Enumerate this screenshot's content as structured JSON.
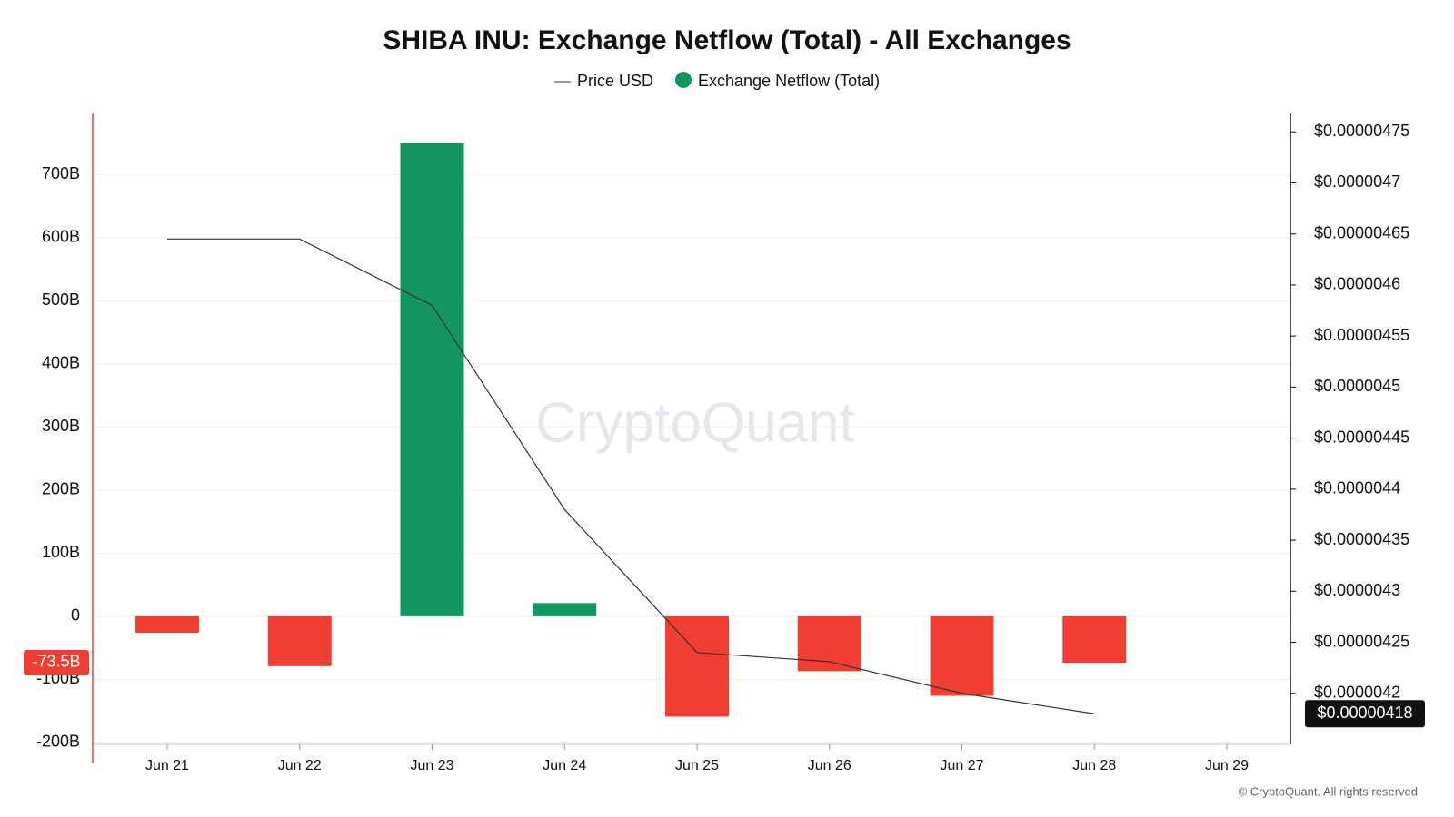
{
  "chart_data": {
    "type": "bar",
    "title": "SHIBA INU: Exchange Netflow (Total) - All Exchanges",
    "watermark": "CryptoQuant",
    "source": "© CryptoQuant. All rights reserved",
    "categories": [
      "Jun 21",
      "Jun 22",
      "Jun 23",
      "Jun 24",
      "Jun 25",
      "Jun 26",
      "Jun 27",
      "Jun 28",
      "Jun 29"
    ],
    "series": [
      {
        "name": "Price USD",
        "type": "line",
        "axis": "y2",
        "color": "#333333",
        "values": [
          4.645e-06,
          4.645e-06,
          4.58e-06,
          4.38e-06,
          4.24e-06,
          4.231e-06,
          4.2e-06,
          4.18e-06,
          null
        ],
        "value_labels": [
          null,
          null,
          null,
          null,
          null,
          null,
          null,
          "$0.00000418",
          null
        ]
      },
      {
        "name": "Exchange Netflow (Total)",
        "type": "bar",
        "color": "#14965f",
        "negative_color": "#f23d32",
        "values": [
          -26,
          -79,
          750,
          21,
          -159,
          -87,
          -126,
          -73.5,
          null
        ],
        "value_labels": [
          null,
          null,
          null,
          null,
          null,
          null,
          null,
          "-73.5B",
          null
        ]
      }
    ],
    "ylim": [
      -203,
      797
    ],
    "yticks": [
      {
        "value": -200,
        "label": "-200B"
      },
      {
        "value": -100,
        "label": "-100B"
      },
      0,
      {
        "value": 100,
        "label": "100B"
      },
      {
        "value": 200,
        "label": "200B"
      },
      {
        "value": 300,
        "label": "300B"
      },
      {
        "value": 400,
        "label": "400B"
      },
      {
        "value": 500,
        "label": "500B"
      },
      {
        "value": 600,
        "label": "600B"
      },
      {
        "value": 700,
        "label": "700B"
      }
    ],
    "y2lim": [
      4.15e-06,
      4.768e-06
    ],
    "y2ticks": [
      {
        "value": 4.2e-06,
        "label": "$0.0000042"
      },
      {
        "value": 4.25e-06,
        "label": "$0.00000425"
      },
      {
        "value": 4.3e-06,
        "label": "$0.0000043"
      },
      {
        "value": 4.35e-06,
        "label": "$0.00000435"
      },
      {
        "value": 4.4e-06,
        "label": "$0.0000044"
      },
      {
        "value": 4.45e-06,
        "label": "$0.00000445"
      },
      {
        "value": 4.5e-06,
        "label": "$0.0000045"
      },
      {
        "value": 4.55e-06,
        "label": "$0.00000455"
      },
      {
        "value": 4.6e-06,
        "label": "$0.0000046"
      },
      {
        "value": 4.65e-06,
        "label": "$0.00000465"
      },
      {
        "value": 4.7e-06,
        "label": "$0.0000047"
      },
      {
        "value": 4.75e-06,
        "label": "$0.00000475"
      }
    ],
    "grid": true
  }
}
